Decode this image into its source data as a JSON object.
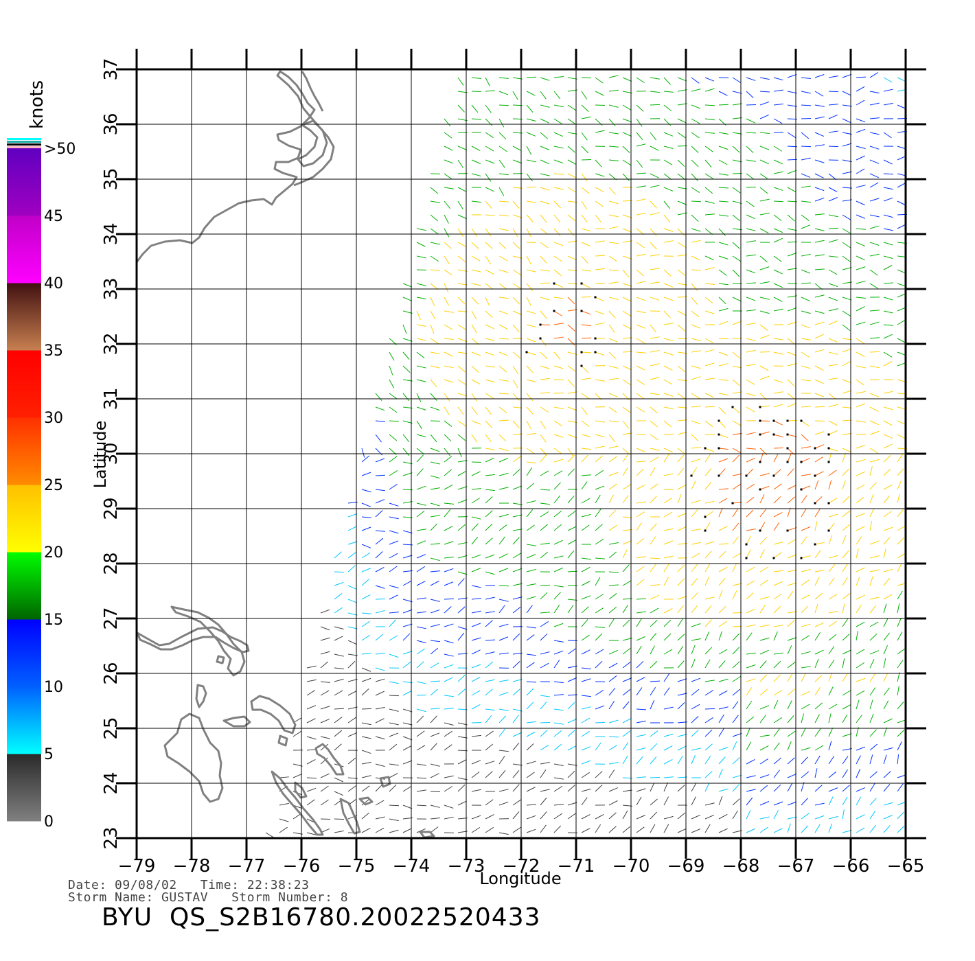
{
  "map": {
    "lon_range": [
      -79,
      -65
    ],
    "lat_range": [
      23,
      37
    ],
    "lon_ticks": [
      -79,
      -78,
      -77,
      -76,
      -75,
      -74,
      -73,
      -72,
      -71,
      -70,
      -69,
      -68,
      -67,
      -66,
      -65
    ],
    "lat_ticks": [
      23,
      24,
      25,
      26,
      27,
      28,
      29,
      30,
      31,
      32,
      33,
      34,
      35,
      36,
      37
    ],
    "xlabel": "Longitude",
    "ylabel": "Latitude",
    "grid": true,
    "coast_color": "#808080",
    "land": [
      "north-carolina-coast",
      "bahamas-islands"
    ]
  },
  "legend": {
    "title": "knots",
    "labels": [
      "0",
      "5",
      "10",
      "15",
      "20",
      "25",
      "30",
      "35",
      "40",
      "45",
      ">50"
    ],
    "bands": [
      {
        "from": 0,
        "to": 5,
        "colors": [
          "#808080",
          "#2a2a2a"
        ]
      },
      {
        "from": 5,
        "to": 10,
        "colors": [
          "#00ffff",
          "#0060ff"
        ]
      },
      {
        "from": 10,
        "to": 15,
        "colors": [
          "#0060ff",
          "#0000ff"
        ]
      },
      {
        "from": 15,
        "to": 20,
        "colors": [
          "#006400",
          "#00ff00"
        ]
      },
      {
        "from": 20,
        "to": 25,
        "colors": [
          "#ffff00",
          "#ffc000"
        ]
      },
      {
        "from": 25,
        "to": 30,
        "colors": [
          "#ff8c00",
          "#ff3000"
        ]
      },
      {
        "from": 30,
        "to": 35,
        "colors": [
          "#ff2000",
          "#ff0000"
        ]
      },
      {
        "from": 35,
        "to": 40,
        "colors": [
          "#c88050",
          "#401010"
        ]
      },
      {
        "from": 40,
        "to": 45,
        "colors": [
          "#ff00ff",
          "#c000c8"
        ]
      },
      {
        "from": 45,
        "to": 50,
        "colors": [
          "#a000c0",
          "#6000c0"
        ]
      }
    ],
    "top_stripes": [
      "#ffb6c1",
      "#000000",
      "#20b2aa",
      "#00ffff"
    ]
  },
  "wind_field": {
    "description_colors": {
      "calm": "#404040",
      "light": "#00c8ff",
      "moderate": "#0030ff",
      "fresh": "#00b000",
      "strong": "#ffd000",
      "gale": "#ff6000",
      "storm": "#e00000",
      "violent": "#c000c0"
    }
  },
  "info": {
    "date_line": "Date: 09/08/02   Time: 22:38:23",
    "storm_line": "Storm Name: GUSTAV   Storm Number: 8"
  },
  "caption": "BYU  QS_S2B16780.20022520433"
}
